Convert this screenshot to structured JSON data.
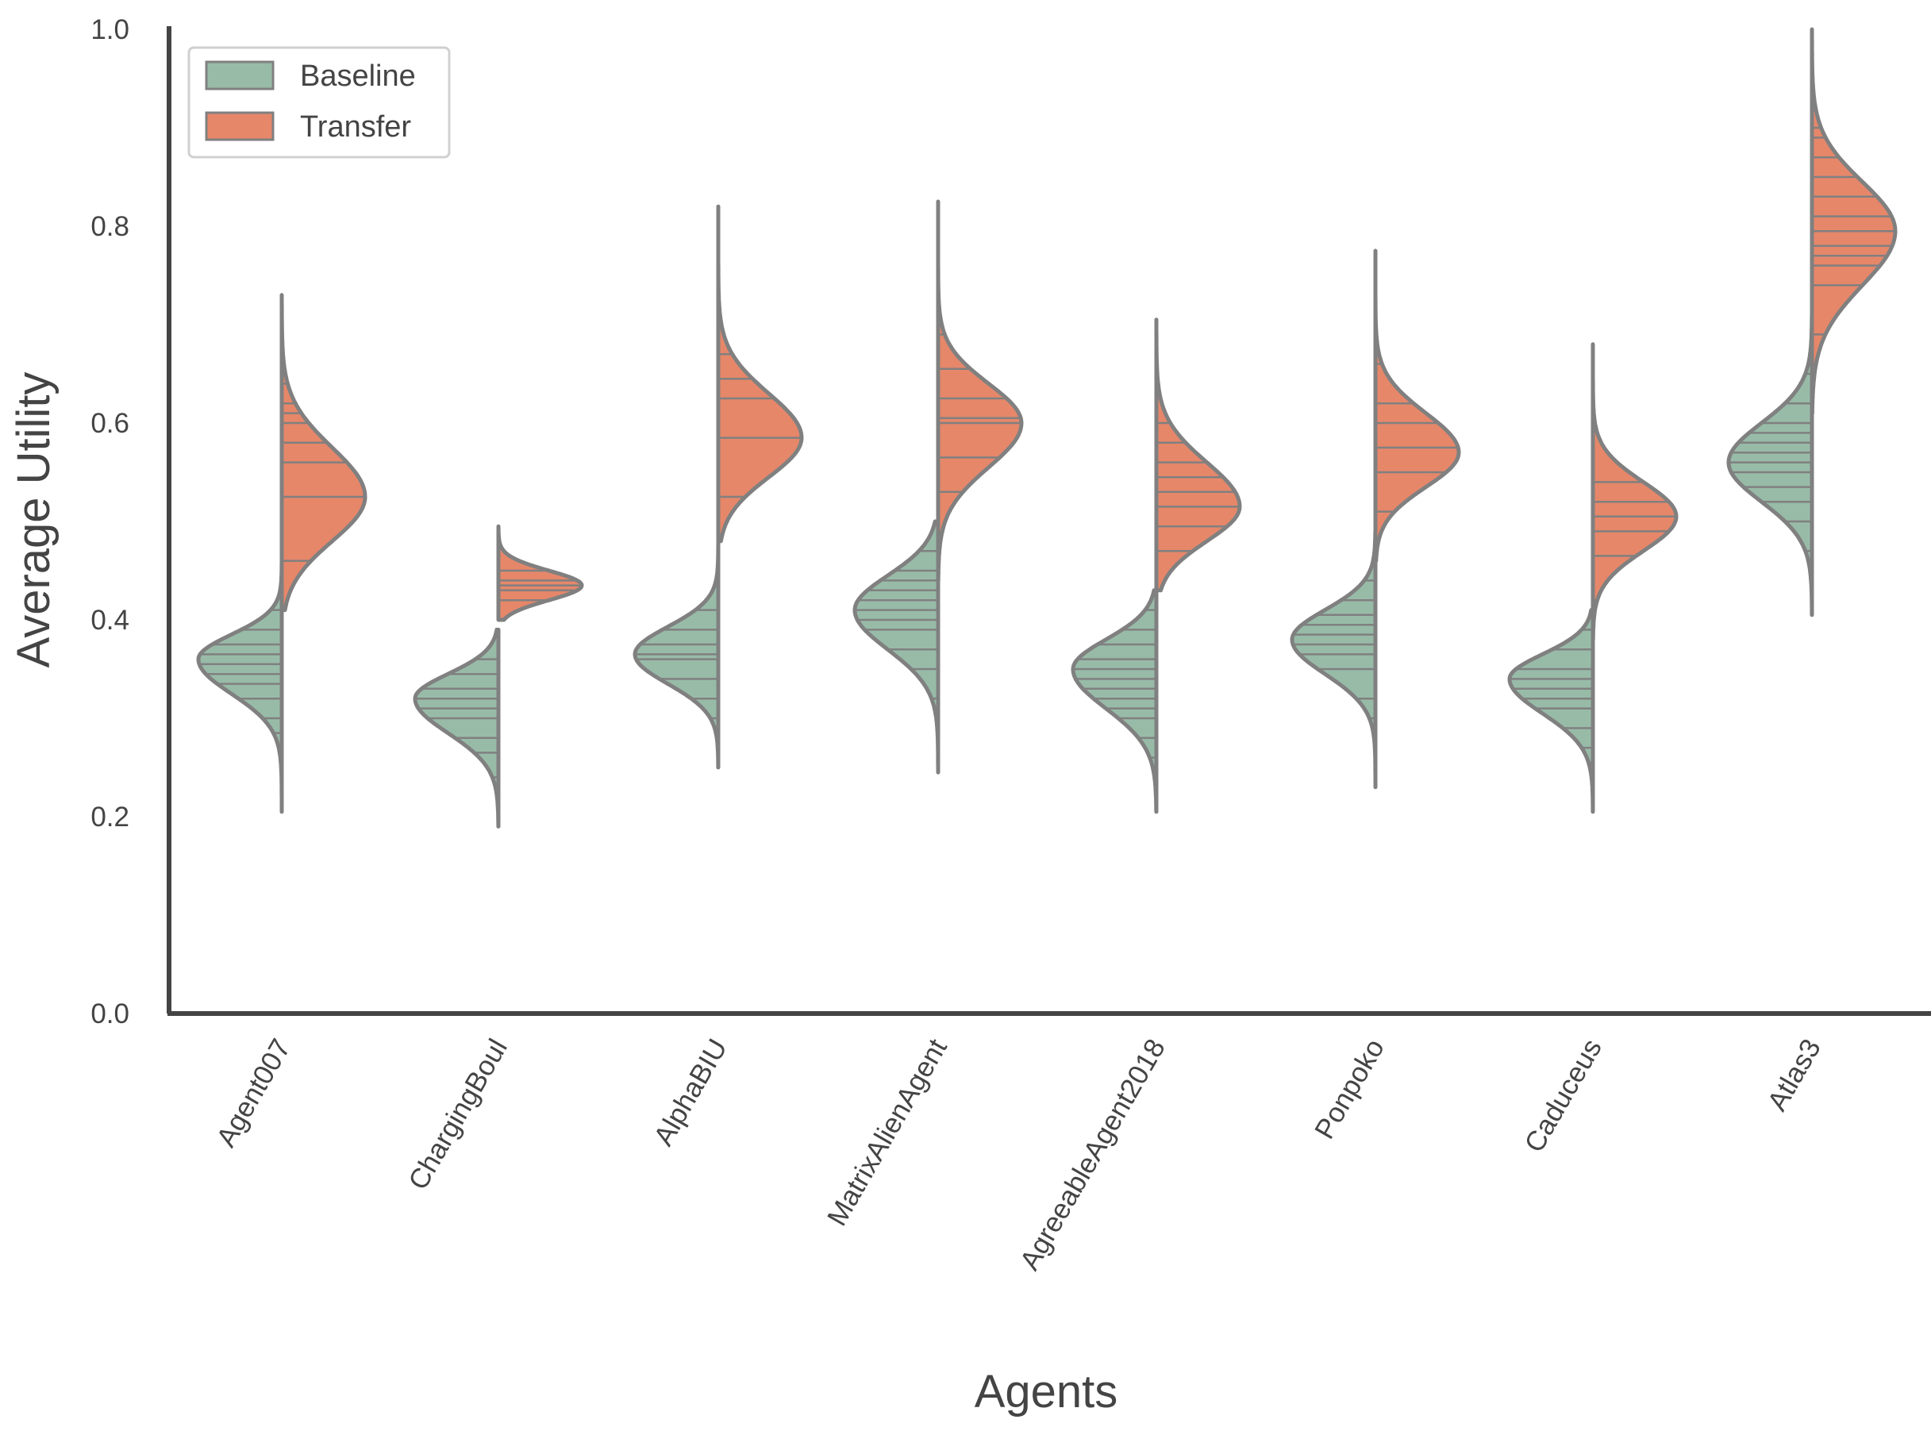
{
  "chart_data": {
    "type": "violin",
    "split": true,
    "inner": "stick",
    "title": "",
    "xlabel": "Agents",
    "ylabel": "Average Utility",
    "ylim": [
      0.0,
      1.0
    ],
    "yticks": [
      "0.0",
      "0.2",
      "0.4",
      "0.6",
      "0.8",
      "1.0"
    ],
    "yticks_values": [
      0.0,
      0.2,
      0.4,
      0.6,
      0.8,
      1.0
    ],
    "categories": [
      "Agent007",
      "ChargingBoul",
      "AlphaBIU",
      "MatrixAlienAgent",
      "AgreeableAgent2018",
      "Ponpoko",
      "Caduceus",
      "Atlas3"
    ],
    "legend": {
      "position": "top-left",
      "entries": [
        "Baseline",
        "Transfer"
      ]
    },
    "colors": {
      "Baseline": "#98bba8",
      "Transfer": "#e6876a",
      "outline": "#808080",
      "axis": "#444444"
    },
    "series": [
      {
        "name": "Baseline",
        "side": "left",
        "violins": [
          {
            "min": 0.205,
            "max": 0.46,
            "peak": 0.36,
            "sd_low": 0.035,
            "sd_high": 0.025,
            "observations": [
              0.27,
              0.285,
              0.3,
              0.32,
              0.335,
              0.345,
              0.355,
              0.365,
              0.375,
              0.39,
              0.41,
              0.43
            ]
          },
          {
            "min": 0.19,
            "max": 0.39,
            "peak": 0.32,
            "sd_low": 0.035,
            "sd_high": 0.025,
            "observations": [
              0.24,
              0.265,
              0.28,
              0.3,
              0.31,
              0.32,
              0.33,
              0.345,
              0.36
            ]
          },
          {
            "min": 0.25,
            "max": 0.48,
            "peak": 0.365,
            "sd_low": 0.03,
            "sd_high": 0.028,
            "observations": [
              0.3,
              0.32,
              0.34,
              0.36,
              0.365,
              0.375,
              0.39,
              0.41,
              0.44
            ]
          },
          {
            "min": 0.245,
            "max": 0.5,
            "peak": 0.41,
            "sd_low": 0.04,
            "sd_high": 0.035,
            "observations": [
              0.32,
              0.35,
              0.37,
              0.39,
              0.4,
              0.41,
              0.42,
              0.43,
              0.44,
              0.45,
              0.47
            ]
          },
          {
            "min": 0.205,
            "max": 0.43,
            "peak": 0.35,
            "sd_low": 0.04,
            "sd_high": 0.03,
            "observations": [
              0.26,
              0.28,
              0.3,
              0.31,
              0.32,
              0.33,
              0.34,
              0.35,
              0.36,
              0.375,
              0.39,
              0.41
            ]
          },
          {
            "min": 0.23,
            "max": 0.49,
            "peak": 0.38,
            "sd_low": 0.035,
            "sd_high": 0.03,
            "observations": [
              0.3,
              0.32,
              0.35,
              0.365,
              0.375,
              0.385,
              0.395,
              0.405,
              0.42,
              0.44,
              0.46
            ]
          },
          {
            "min": 0.205,
            "max": 0.41,
            "peak": 0.34,
            "sd_low": 0.035,
            "sd_high": 0.025,
            "observations": [
              0.255,
              0.27,
              0.29,
              0.31,
              0.32,
              0.33,
              0.34,
              0.35,
              0.37,
              0.39
            ]
          },
          {
            "min": 0.405,
            "max": 0.71,
            "peak": 0.56,
            "sd_low": 0.04,
            "sd_high": 0.04,
            "observations": [
              0.47,
              0.5,
              0.52,
              0.535,
              0.55,
              0.56,
              0.57,
              0.58,
              0.59,
              0.6,
              0.62,
              0.65
            ]
          }
        ]
      },
      {
        "name": "Transfer",
        "side": "right",
        "violins": [
          {
            "min": 0.41,
            "max": 0.73,
            "peak": 0.525,
            "sd_low": 0.045,
            "sd_high": 0.05,
            "observations": [
              0.46,
              0.525,
              0.56,
              0.58,
              0.6,
              0.61,
              0.62,
              0.64
            ]
          },
          {
            "min": 0.4,
            "max": 0.495,
            "peak": 0.435,
            "sd_low": 0.015,
            "sd_high": 0.015,
            "observations": [
              0.42,
              0.43,
              0.435,
              0.44,
              0.45
            ]
          },
          {
            "min": 0.48,
            "max": 0.82,
            "peak": 0.585,
            "sd_low": 0.04,
            "sd_high": 0.045,
            "observations": [
              0.525,
              0.585,
              0.625,
              0.645,
              0.67
            ]
          },
          {
            "min": 0.44,
            "max": 0.825,
            "peak": 0.6,
            "sd_low": 0.045,
            "sd_high": 0.04,
            "observations": [
              0.53,
              0.565,
              0.6,
              0.605,
              0.625,
              0.655,
              0.69
            ]
          },
          {
            "min": 0.43,
            "max": 0.705,
            "peak": 0.515,
            "sd_low": 0.035,
            "sd_high": 0.045,
            "observations": [
              0.47,
              0.495,
              0.515,
              0.53,
              0.545,
              0.56,
              0.58,
              0.6,
              0.63
            ]
          },
          {
            "min": 0.46,
            "max": 0.775,
            "peak": 0.57,
            "sd_low": 0.035,
            "sd_high": 0.04,
            "observations": [
              0.51,
              0.55,
              0.575,
              0.6,
              0.62,
              0.66,
              0.7
            ]
          },
          {
            "min": 0.38,
            "max": 0.68,
            "peak": 0.505,
            "sd_low": 0.035,
            "sd_high": 0.035,
            "observations": [
              0.42,
              0.465,
              0.49,
              0.505,
              0.52,
              0.54
            ]
          },
          {
            "min": 0.61,
            "max": 1.0,
            "peak": 0.795,
            "sd_low": 0.055,
            "sd_high": 0.05,
            "observations": [
              0.69,
              0.74,
              0.76,
              0.77,
              0.78,
              0.795,
              0.81,
              0.83,
              0.85,
              0.87,
              0.89,
              0.9
            ]
          }
        ]
      }
    ]
  }
}
